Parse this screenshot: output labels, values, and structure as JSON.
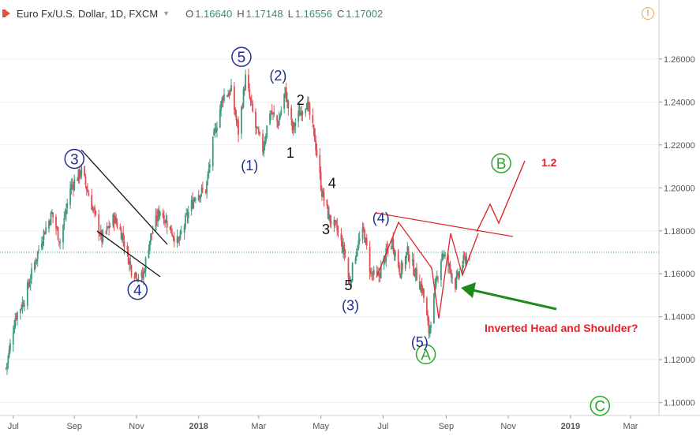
{
  "header": {
    "symbol": "Euro Fx/U.S. Dollar, 1D, FXCM",
    "open_label": "O",
    "open": "1.16640",
    "high_label": "H",
    "high": "1.17148",
    "low_label": "L",
    "low": "1.16556",
    "close_label": "C",
    "close": "1.17002",
    "alert_icon": "!"
  },
  "colors": {
    "up": "#3c9a7e",
    "down": "#e04f55",
    "navy": "#1f2f8f",
    "green": "#2aa82a",
    "red": "#e0232a",
    "arrow": "#1e8a1e",
    "grid": "#eeeeee",
    "axis": "#555555"
  },
  "chart_data": {
    "type": "candlestick",
    "x_ticks": [
      "Jul",
      "Sep",
      "Nov",
      "2018",
      "Mar",
      "May",
      "Jul",
      "Sep",
      "Nov",
      "2019",
      "Mar"
    ],
    "y_ticks": [
      "1.26000",
      "1.24000",
      "1.22000",
      "1.20000",
      "1.18000",
      "1.16000",
      "1.14000",
      "1.12000",
      "1.10000"
    ],
    "ylim": [
      1.094,
      1.275
    ],
    "current_price": 1.17,
    "close_path": [
      [
        "2017-06-26",
        1.116
      ],
      [
        "2017-07-05",
        1.14
      ],
      [
        "2017-07-14",
        1.148
      ],
      [
        "2017-07-24",
        1.165
      ],
      [
        "2017-08-01",
        1.178
      ],
      [
        "2017-08-10",
        1.188
      ],
      [
        "2017-08-18",
        1.175
      ],
      [
        "2017-08-28",
        1.2
      ],
      [
        "2017-09-08",
        1.208
      ],
      [
        "2017-09-18",
        1.192
      ],
      [
        "2017-09-28",
        1.176
      ],
      [
        "2017-10-10",
        1.186
      ],
      [
        "2017-10-18",
        1.178
      ],
      [
        "2017-10-27",
        1.162
      ],
      [
        "2017-11-07",
        1.158
      ],
      [
        "2017-11-14",
        1.176
      ],
      [
        "2017-11-24",
        1.19
      ],
      [
        "2017-12-04",
        1.181
      ],
      [
        "2017-12-12",
        1.174
      ],
      [
        "2017-12-20",
        1.186
      ],
      [
        "2017-12-29",
        1.197
      ],
      [
        "2018-01-08",
        1.199
      ],
      [
        "2018-01-16",
        1.224
      ],
      [
        "2018-01-25",
        1.243
      ],
      [
        "2018-02-02",
        1.245
      ],
      [
        "2018-02-09",
        1.226
      ],
      [
        "2018-02-16",
        1.251
      ],
      [
        "2018-02-26",
        1.228
      ],
      [
        "2018-03-05",
        1.218
      ],
      [
        "2018-03-12",
        1.236
      ],
      [
        "2018-03-20",
        1.23
      ],
      [
        "2018-03-27",
        1.245
      ],
      [
        "2018-04-03",
        1.227
      ],
      [
        "2018-04-10",
        1.235
      ],
      [
        "2018-04-17",
        1.24
      ],
      [
        "2018-04-25",
        1.223
      ],
      [
        "2018-05-02",
        1.198
      ],
      [
        "2018-05-09",
        1.186
      ],
      [
        "2018-05-17",
        1.18
      ],
      [
        "2018-05-25",
        1.168
      ],
      [
        "2018-05-29",
        1.155
      ],
      [
        "2018-06-05",
        1.172
      ],
      [
        "2018-06-12",
        1.18
      ],
      [
        "2018-06-19",
        1.16
      ],
      [
        "2018-06-26",
        1.158
      ],
      [
        "2018-07-03",
        1.168
      ],
      [
        "2018-07-10",
        1.175
      ],
      [
        "2018-07-18",
        1.161
      ],
      [
        "2018-07-25",
        1.17
      ],
      [
        "2018-08-02",
        1.16
      ],
      [
        "2018-08-09",
        1.152
      ],
      [
        "2018-08-15",
        1.133
      ],
      [
        "2018-08-22",
        1.155
      ],
      [
        "2018-08-28",
        1.17
      ],
      [
        "2018-09-05",
        1.162
      ],
      [
        "2018-09-10",
        1.155
      ],
      [
        "2018-09-17",
        1.165
      ],
      [
        "2018-09-24",
        1.17
      ]
    ],
    "annotations": {
      "wave_labels_circled": [
        {
          "label": "3",
          "date": "2017-09-01",
          "price": 1.2135,
          "color": "navy"
        },
        {
          "label": "4",
          "date": "2017-11-02",
          "price": 1.1525,
          "color": "navy"
        },
        {
          "label": "5",
          "date": "2018-02-12",
          "price": 1.261,
          "color": "navy"
        },
        {
          "label": "B",
          "date": "2018-10-25",
          "price": 1.2115,
          "color": "green"
        },
        {
          "label": "A",
          "date": "2018-08-12",
          "price": 1.1225,
          "color": "green"
        },
        {
          "label": "C",
          "date": "2019-01-30",
          "price": 1.0985,
          "color": "green"
        }
      ],
      "wave_labels_paren": [
        {
          "label": "(2)",
          "date": "2018-03-20",
          "price": 1.25
        },
        {
          "label": "(1)",
          "date": "2018-02-20",
          "price": 1.2082
        },
        {
          "label": "(4)",
          "date": "2018-06-29",
          "price": 1.1838
        },
        {
          "label": "(3)",
          "date": "2018-05-30",
          "price": 1.143
        },
        {
          "label": "(5)",
          "date": "2018-08-06",
          "price": 1.126
        }
      ],
      "wave_labels_plain": [
        {
          "label": "2",
          "date": "2018-04-11",
          "price": 1.2387
        },
        {
          "label": "1",
          "date": "2018-04-01",
          "price": 1.214
        },
        {
          "label": "4",
          "date": "2018-05-12",
          "price": 1.2
        },
        {
          "label": "3",
          "date": "2018-05-06",
          "price": 1.1785
        },
        {
          "label": "5",
          "date": "2018-05-28",
          "price": 1.1523
        }
      ],
      "pattern_label": "Inverted Head and Shoulder?",
      "target_label": "1.2"
    }
  }
}
